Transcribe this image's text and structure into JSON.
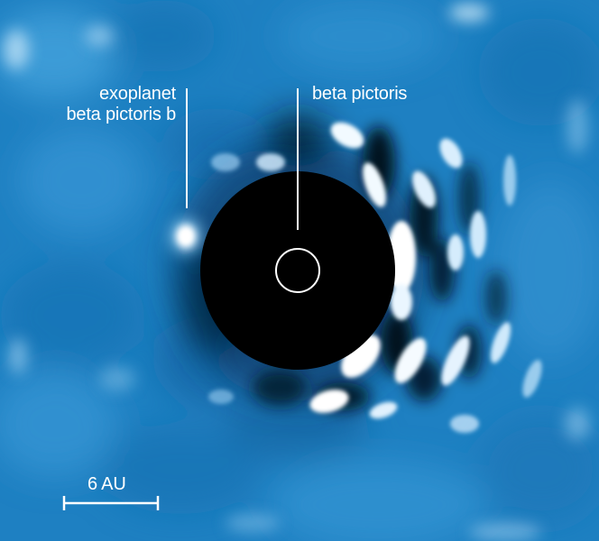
{
  "image": {
    "background_color": "#1d7fc0",
    "speckle_color": "#ffffff",
    "mask_color": "#000000"
  },
  "labels": {
    "planet_line1": "exoplanet",
    "planet_line2": "beta pictoris b",
    "star": "beta pictoris",
    "scale": "6 AU"
  }
}
